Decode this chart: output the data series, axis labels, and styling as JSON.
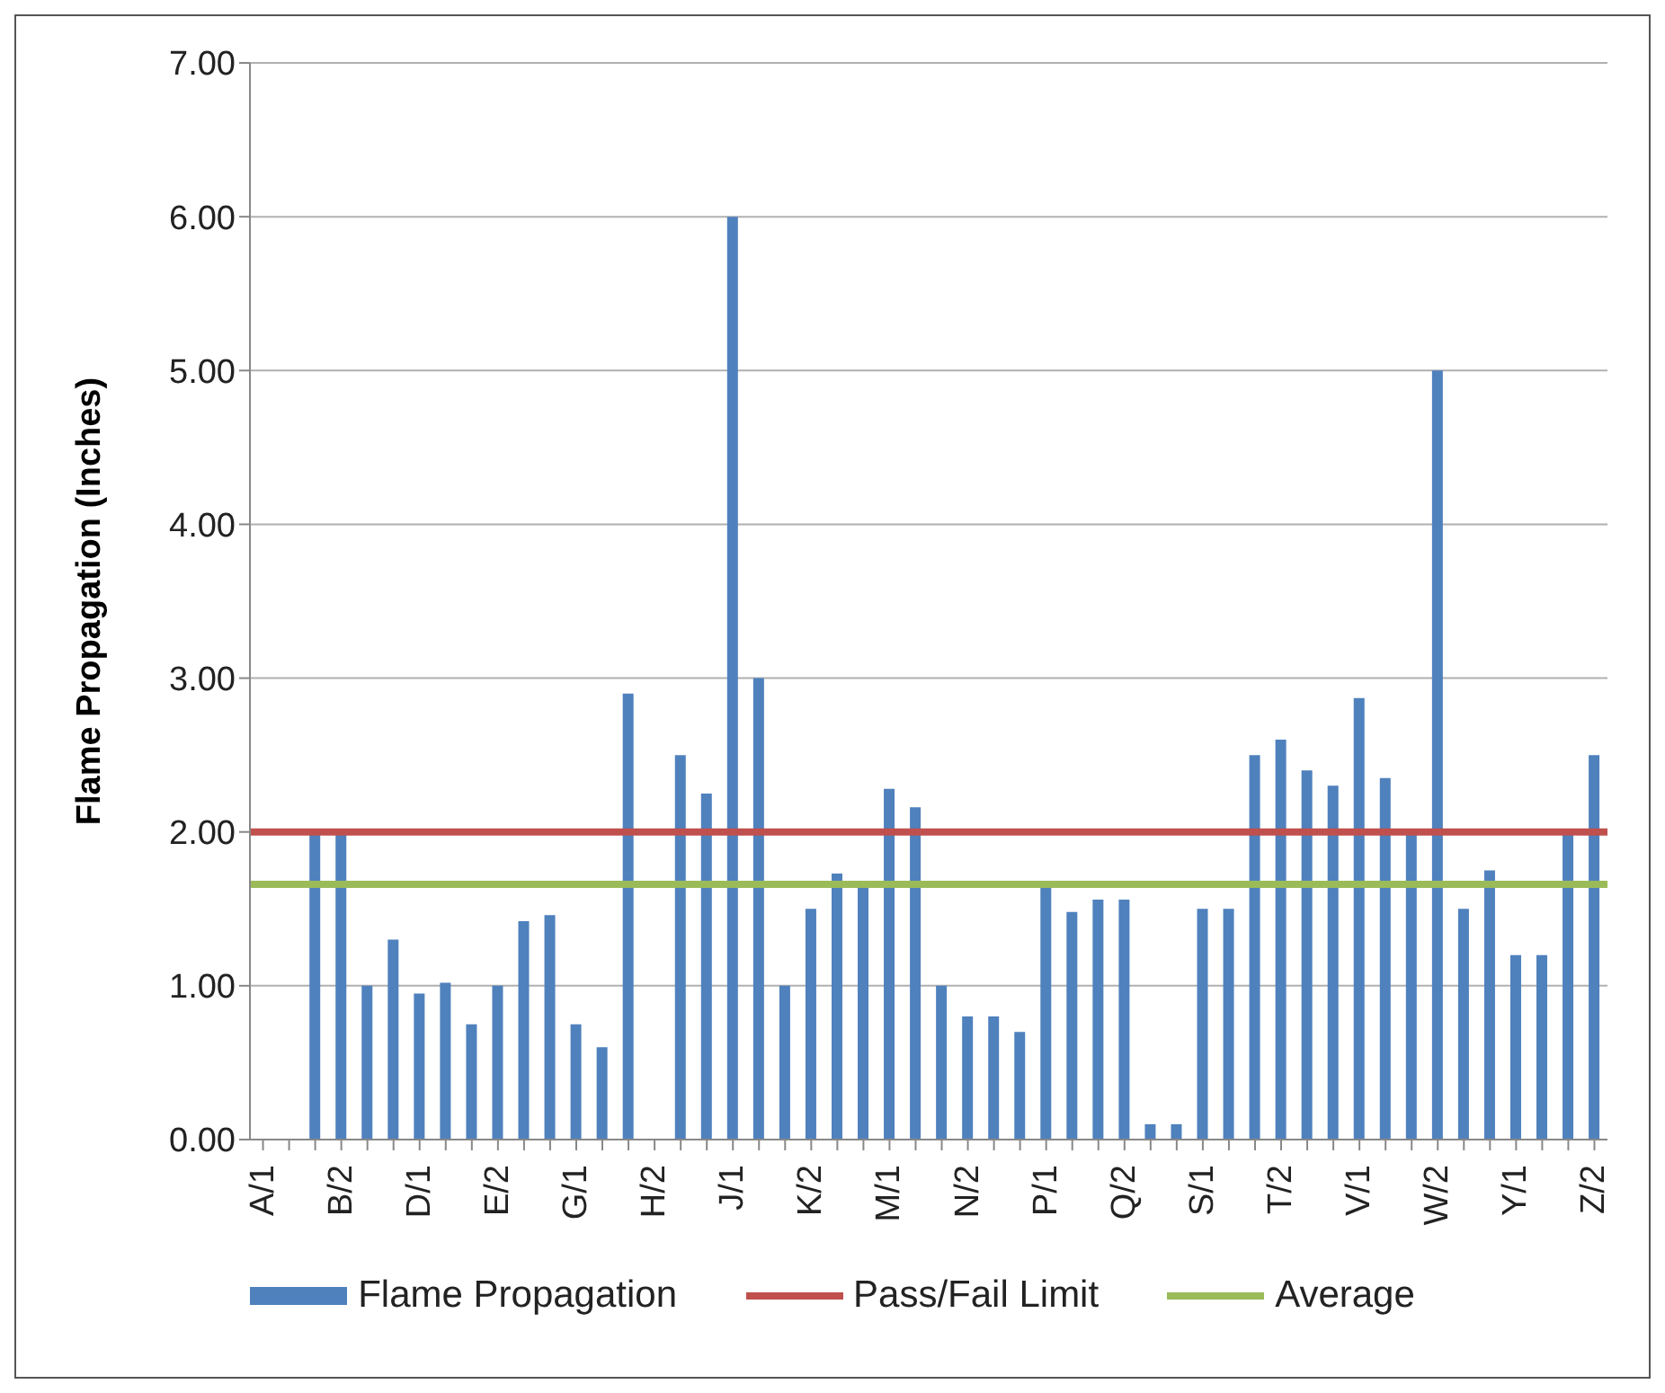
{
  "chart_data": {
    "type": "bar",
    "ylabel": "Flame Propagation (Inches)",
    "categories": [
      "A/1",
      null,
      null,
      "B/2",
      null,
      null,
      "D/1",
      null,
      null,
      "E/2",
      null,
      null,
      "G/1",
      null,
      null,
      "H/2",
      null,
      null,
      "J/1",
      null,
      null,
      "K/2",
      null,
      null,
      "M/1",
      null,
      null,
      "N/2",
      null,
      null,
      "P/1",
      null,
      null,
      "Q/2",
      null,
      null,
      "S/1",
      null,
      null,
      "T/2",
      null,
      null,
      "V/1",
      null,
      null,
      "W/2",
      null,
      null,
      "Y/1",
      null,
      null,
      "Z/2"
    ],
    "series": [
      {
        "name": "Flame Propagation",
        "color": "#4f81bd",
        "values": [
          null,
          null,
          2.0,
          2.0,
          1.0,
          1.3,
          0.95,
          1.02,
          0.75,
          1.0,
          1.42,
          1.46,
          0.75,
          0.6,
          2.9,
          null,
          2.5,
          2.25,
          6.0,
          3.0,
          1.0,
          1.5,
          1.73,
          1.65,
          2.28,
          2.16,
          1.0,
          0.8,
          0.8,
          0.7,
          1.65,
          1.48,
          1.56,
          1.56,
          0.1,
          0.1,
          1.5,
          1.5,
          2.5,
          2.6,
          2.4,
          2.3,
          2.87,
          2.35,
          2.0,
          5.0,
          1.5,
          1.75,
          1.2,
          1.2,
          2.0,
          2.5
        ]
      }
    ],
    "ref_lines": [
      {
        "axis": "y",
        "value": 2.0,
        "label": "Pass/Fail Limit",
        "color": "#c0504d"
      },
      {
        "axis": "y",
        "value": 1.66,
        "label": "Average",
        "color": "#9bbb59"
      }
    ],
    "ylim": [
      0,
      7
    ],
    "yticks": [
      {
        "value": 0,
        "label": "0.00"
      },
      {
        "value": 1,
        "label": "1.00"
      },
      {
        "value": 2,
        "label": "2.00"
      },
      {
        "value": 3,
        "label": "3.00"
      },
      {
        "value": 4,
        "label": "4.00"
      },
      {
        "value": 5,
        "label": "5.00"
      },
      {
        "value": 6,
        "label": "6.00"
      },
      {
        "value": 7,
        "label": "7.00"
      }
    ],
    "grid": "y",
    "legend": "bottom"
  }
}
